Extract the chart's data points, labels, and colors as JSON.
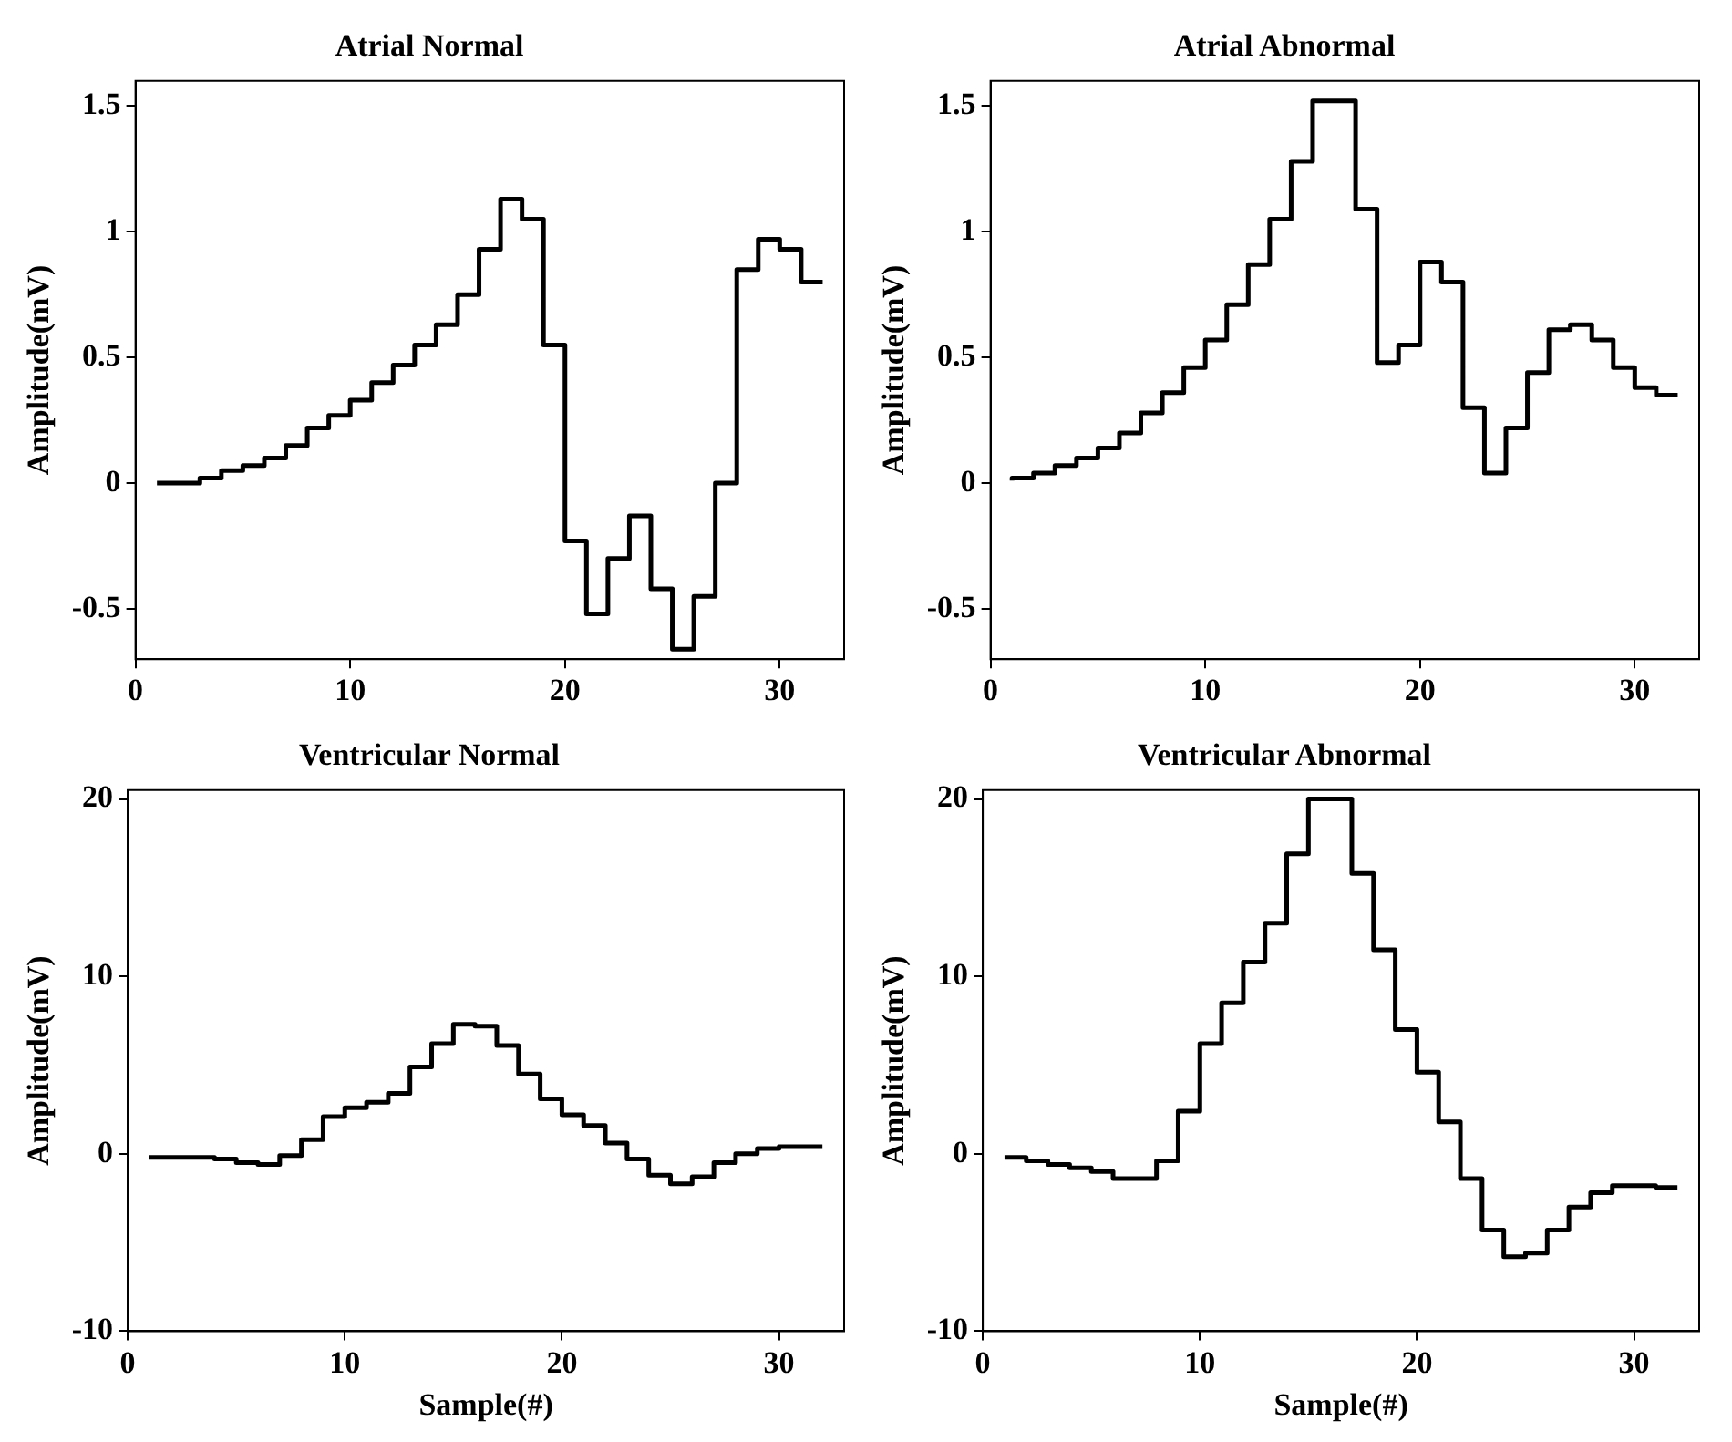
{
  "chart_data": [
    {
      "type": "step",
      "title": "Atrial Normal",
      "ylabel": "Amplitude(mV)",
      "x": [
        1,
        2,
        3,
        4,
        5,
        6,
        7,
        8,
        9,
        10,
        11,
        12,
        13,
        14,
        15,
        16,
        17,
        18,
        19,
        20,
        21,
        22,
        23,
        24,
        25,
        26,
        27,
        28,
        29,
        30,
        31,
        32
      ],
      "color": "#000000",
      "values": [
        0,
        0,
        0,
        0.02,
        0.05,
        0.07,
        0.1,
        0.15,
        0.22,
        0.27,
        0.33,
        0.4,
        0.47,
        0.55,
        0.63,
        0.75,
        0.93,
        1.13,
        1.05,
        0.55,
        -0.23,
        -0.52,
        -0.3,
        -0.13,
        -0.42,
        -0.66,
        -0.45,
        0,
        0.85,
        0.97,
        0.93,
        0.8
      ],
      "xlim": [
        0,
        33
      ],
      "ylim": [
        -0.7,
        1.6
      ],
      "xticks": [
        0,
        10,
        20,
        30
      ],
      "yticks": [
        -0.5,
        0,
        0.5,
        1,
        1.5
      ],
      "grid": false,
      "legend": false
    },
    {
      "type": "step",
      "title": "Atrial Abnormal",
      "ylabel": "Amplitude(mV)",
      "x": [
        1,
        2,
        3,
        4,
        5,
        6,
        7,
        8,
        9,
        10,
        11,
        12,
        13,
        14,
        15,
        16,
        17,
        18,
        19,
        20,
        21,
        22,
        23,
        24,
        25,
        26,
        27,
        28,
        29,
        30,
        31,
        32
      ],
      "color": "#000000",
      "values": [
        0.01,
        0.02,
        0.04,
        0.07,
        0.1,
        0.14,
        0.2,
        0.28,
        0.36,
        0.46,
        0.57,
        0.71,
        0.87,
        1.05,
        1.28,
        1.52,
        1.52,
        1.09,
        0.48,
        0.55,
        0.88,
        0.8,
        0.3,
        0.04,
        0.22,
        0.44,
        0.61,
        0.63,
        0.57,
        0.46,
        0.38,
        0.35
      ],
      "xlim": [
        0,
        33
      ],
      "ylim": [
        -0.7,
        1.6
      ],
      "xticks": [
        0,
        10,
        20,
        30
      ],
      "yticks": [
        -0.5,
        0,
        0.5,
        1,
        1.5
      ],
      "grid": false,
      "legend": false
    },
    {
      "type": "step",
      "title": "Ventricular Normal",
      "xlabel": "Sample(#)",
      "ylabel": "Amplitude(mV)",
      "x": [
        1,
        2,
        3,
        4,
        5,
        6,
        7,
        8,
        9,
        10,
        11,
        12,
        13,
        14,
        15,
        16,
        17,
        18,
        19,
        20,
        21,
        22,
        23,
        24,
        25,
        26,
        27,
        28,
        29,
        30,
        31,
        32
      ],
      "color": "#000000",
      "values": [
        -0.2,
        -0.2,
        -0.2,
        -0.2,
        -0.3,
        -0.5,
        -0.6,
        -0.1,
        0.8,
        2.1,
        2.6,
        2.9,
        3.4,
        4.9,
        6.2,
        7.3,
        7.2,
        6.1,
        4.5,
        3.1,
        2.2,
        1.6,
        0.6,
        -0.3,
        -1.2,
        -1.7,
        -1.3,
        -0.5,
        0,
        0.3,
        0.4,
        0.4
      ],
      "xlim": [
        0,
        33
      ],
      "ylim": [
        -10,
        20.5
      ],
      "xticks": [
        0,
        10,
        20,
        30
      ],
      "yticks": [
        -10,
        0,
        10,
        20
      ],
      "grid": false,
      "legend": false
    },
    {
      "type": "step",
      "title": "Ventricular Abnormal",
      "xlabel": "Sample(#)",
      "ylabel": "Amplitude(mV)",
      "x": [
        1,
        2,
        3,
        4,
        5,
        6,
        7,
        8,
        9,
        10,
        11,
        12,
        13,
        14,
        15,
        16,
        17,
        18,
        19,
        20,
        21,
        22,
        23,
        24,
        25,
        26,
        27,
        28,
        29,
        30,
        31,
        32
      ],
      "color": "#000000",
      "values": [
        -0.2,
        -0.2,
        -0.4,
        -0.6,
        -0.8,
        -1,
        -1.4,
        -1.4,
        -0.4,
        2.4,
        6.2,
        8.5,
        10.8,
        13,
        16.9,
        20,
        20,
        15.8,
        11.5,
        7,
        4.6,
        1.8,
        -1.4,
        -4.3,
        -5.8,
        -5.6,
        -4.3,
        -3,
        -2.2,
        -1.8,
        -1.8,
        -1.9
      ],
      "xlim": [
        0,
        33
      ],
      "ylim": [
        -10,
        20.5
      ],
      "xticks": [
        0,
        10,
        20,
        30
      ],
      "yticks": [
        -10,
        0,
        10,
        20
      ],
      "grid": false,
      "legend": false
    }
  ]
}
